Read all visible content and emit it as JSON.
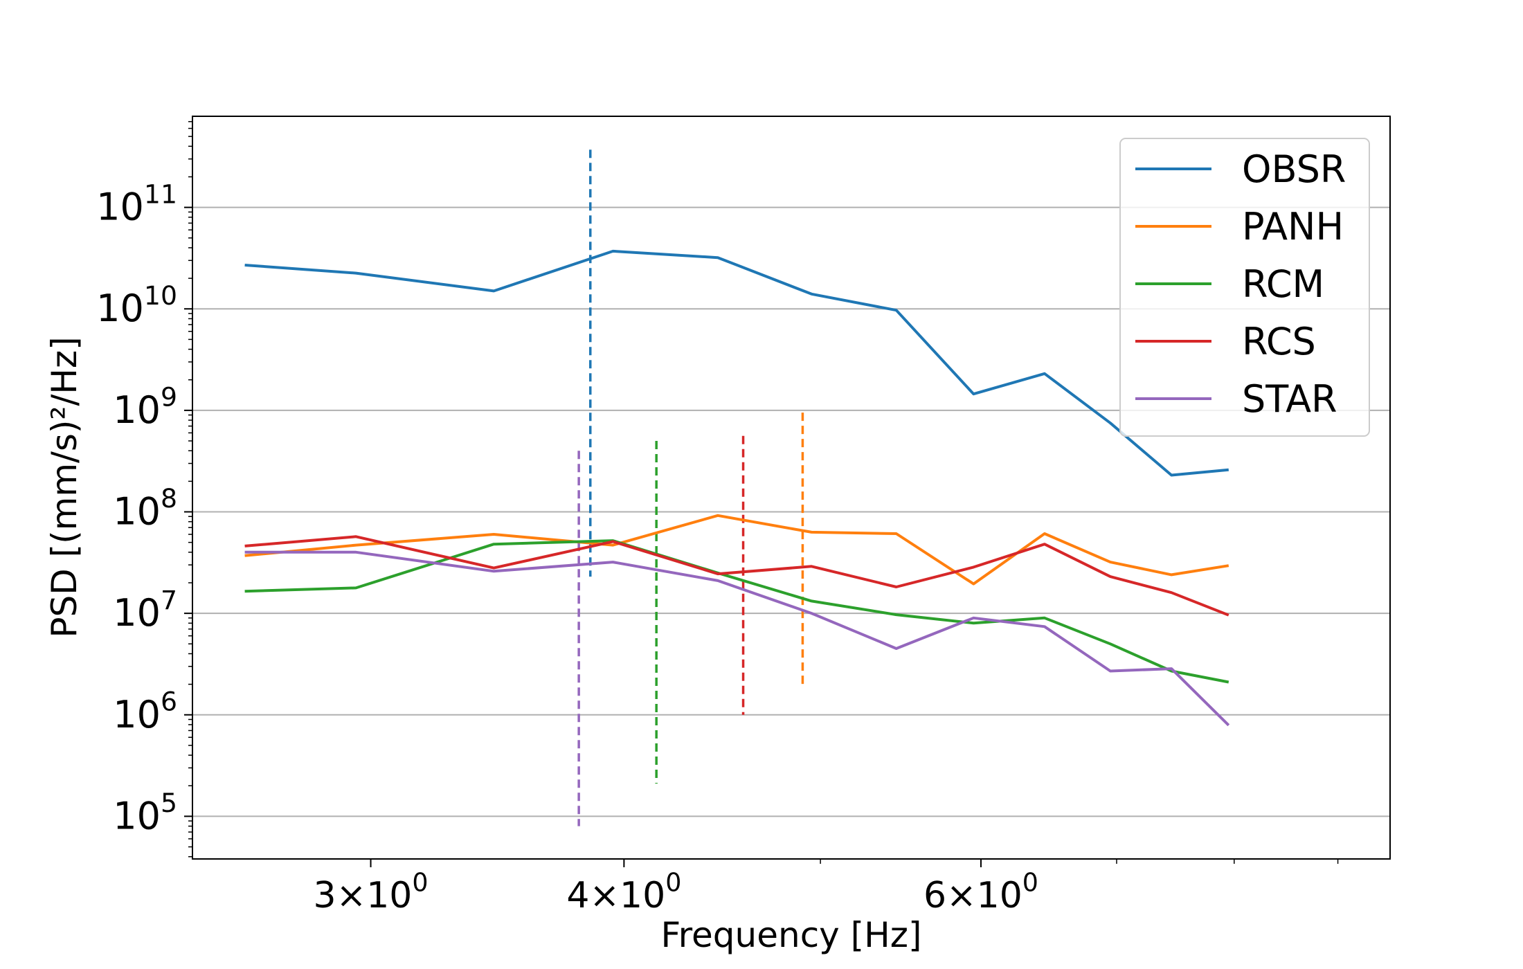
{
  "chart_data": {
    "type": "line",
    "title": "",
    "xlabel": "Frequency [Hz]",
    "ylabel": "PSD [(mm/s)²/Hz]",
    "x_scale": "log",
    "y_scale": "log",
    "xlim": [
      2.45,
      9.55
    ],
    "ylim": [
      38000,
      790000000000
    ],
    "grid": "horizontal-major",
    "legend_position": "top-right",
    "x_ticks": [
      {
        "value": 3,
        "mantissa": "3",
        "base": "10",
        "exp": "0"
      },
      {
        "value": 4,
        "mantissa": "4",
        "base": "10",
        "exp": "0"
      },
      {
        "value": 6,
        "mantissa": "6",
        "base": "10",
        "exp": "0"
      }
    ],
    "y_ticks": [
      {
        "value": 100000,
        "base": "10",
        "exp": "5"
      },
      {
        "value": 1000000,
        "base": "10",
        "exp": "6"
      },
      {
        "value": 10000000,
        "base": "10",
        "exp": "7"
      },
      {
        "value": 100000000,
        "base": "10",
        "exp": "8"
      },
      {
        "value": 1000000000,
        "base": "10",
        "exp": "9"
      },
      {
        "value": 10000000000,
        "base": "10",
        "exp": "10"
      },
      {
        "value": 100000000000,
        "base": "10",
        "exp": "11"
      }
    ],
    "x": [
      2.6,
      2.95,
      3.45,
      3.95,
      4.45,
      4.95,
      5.45,
      5.95,
      6.45,
      6.95,
      7.45,
      7.95
    ],
    "series": [
      {
        "name": "OBSR",
        "color": "#1f77b4",
        "values": [
          27000000000,
          22500000000,
          15000000000,
          37000000000,
          32000000000,
          14000000000,
          9700000000,
          1450000000,
          2300000000,
          750000000,
          230000000,
          260000000
        ],
        "marker_x": 3.85,
        "marker_range": [
          23000000,
          370000000000
        ]
      },
      {
        "name": "PANH",
        "color": "#ff7f0e",
        "values": [
          37000000,
          47000000,
          60000000,
          47000000,
          92000000,
          63000000,
          61000000,
          19500000,
          61000000,
          32000000,
          24000000,
          29500000
        ],
        "marker_x": 4.9,
        "marker_range": [
          1900000,
          950000000
        ]
      },
      {
        "name": "RCM",
        "color": "#2ca02c",
        "values": [
          16500000,
          17800000,
          48000000,
          52000000,
          25000000,
          13200000,
          9700000,
          8000000,
          9000000,
          5000000,
          2700000,
          2100000
        ],
        "marker_x": 4.15,
        "marker_range": [
          210000,
          500000000
        ]
      },
      {
        "name": "RCS",
        "color": "#d62728",
        "values": [
          46000000,
          57000000,
          28000000,
          51000000,
          24500000,
          29000000,
          18200000,
          28500000,
          48000000,
          23000000,
          16000000,
          9600000
        ],
        "marker_x": 4.58,
        "marker_range": [
          1000000,
          560000000
        ]
      },
      {
        "name": "STAR",
        "color": "#9467bd",
        "values": [
          40000000,
          40000000,
          26000000,
          32000000,
          21000000,
          10000000,
          4500000,
          9000000,
          7400000,
          2700000,
          2850000,
          790000
        ],
        "marker_x": 3.8,
        "marker_range": [
          80000,
          400000000
        ]
      }
    ]
  }
}
